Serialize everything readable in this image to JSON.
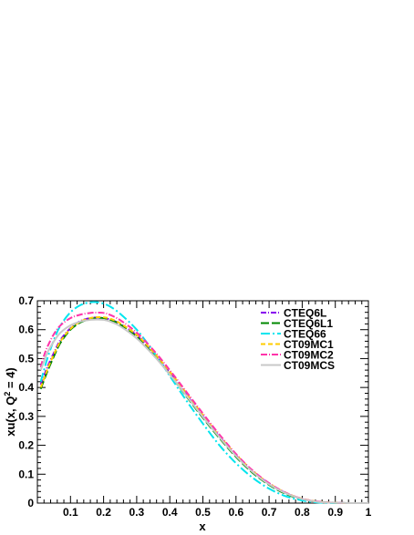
{
  "chart_data": {
    "type": "line",
    "title": "",
    "xlabel": "x",
    "ylabel": "xu(x, Q",
    "ylabel_sup": "2",
    "ylabel_tail": " = 4)",
    "xlim": [
      0,
      1
    ],
    "ylim": [
      0,
      0.7
    ],
    "x_ticks": [
      0.1,
      0.2,
      0.3,
      0.4,
      0.5,
      0.6,
      0.7,
      0.8,
      0.9,
      1
    ],
    "x_tick_labels": [
      "0.1",
      "0.2",
      "0.3",
      "0.4",
      "0.5",
      "0.6",
      "0.7",
      "0.8",
      "0.9",
      "1"
    ],
    "y_ticks": [
      0,
      0.1,
      0.2,
      0.3,
      0.4,
      0.5,
      0.6,
      0.7
    ],
    "y_tick_labels": [
      "0",
      "0.1",
      "0.2",
      "0.3",
      "0.4",
      "0.5",
      "0.6",
      "0.7"
    ],
    "grid": false,
    "legend_position": "top-right",
    "x": [
      0.01,
      0.02,
      0.03,
      0.05,
      0.07,
      0.1,
      0.13,
      0.16,
      0.18,
      0.2,
      0.22,
      0.25,
      0.3,
      0.35,
      0.4,
      0.45,
      0.5,
      0.55,
      0.6,
      0.65,
      0.7,
      0.75,
      0.8,
      0.85,
      0.9,
      0.95,
      1.0
    ],
    "series": [
      {
        "name": "CTEQ6L",
        "color": "#8800ee",
        "dash": "6,2,1,2",
        "values": [
          0.41,
          0.44,
          0.47,
          0.52,
          0.565,
          0.605,
          0.63,
          0.64,
          0.642,
          0.64,
          0.635,
          0.62,
          0.58,
          0.52,
          0.45,
          0.375,
          0.3,
          0.23,
          0.165,
          0.11,
          0.067,
          0.035,
          0.014,
          0.004,
          0.001,
          0.0,
          0.0
        ]
      },
      {
        "name": "CTEQ6L1",
        "color": "#008800",
        "dash": "9,3",
        "values": [
          0.395,
          0.425,
          0.455,
          0.508,
          0.555,
          0.6,
          0.625,
          0.637,
          0.64,
          0.64,
          0.634,
          0.618,
          0.575,
          0.515,
          0.445,
          0.37,
          0.295,
          0.225,
          0.16,
          0.105,
          0.063,
          0.032,
          0.013,
          0.004,
          0.001,
          0.0,
          0.0
        ]
      },
      {
        "name": "CTEQ66",
        "color": "#00e5ee",
        "dash": "10,3,2,3",
        "values": [
          0.42,
          0.46,
          0.5,
          0.565,
          0.615,
          0.66,
          0.685,
          0.695,
          0.695,
          0.69,
          0.68,
          0.655,
          0.6,
          0.525,
          0.44,
          0.355,
          0.275,
          0.2,
          0.138,
          0.088,
          0.05,
          0.024,
          0.009,
          0.002,
          0.0,
          0.0,
          0.0
        ]
      },
      {
        "name": "CT09MC1",
        "color": "#ffcc00",
        "dash": "5,3",
        "values": [
          0.4,
          0.43,
          0.462,
          0.515,
          0.56,
          0.603,
          0.628,
          0.64,
          0.643,
          0.643,
          0.638,
          0.622,
          0.582,
          0.523,
          0.455,
          0.38,
          0.305,
          0.232,
          0.168,
          0.112,
          0.068,
          0.036,
          0.015,
          0.005,
          0.001,
          0.0,
          0.0
        ]
      },
      {
        "name": "CT09MC2",
        "color": "#ff33aa",
        "dash": "7,2,1,2",
        "values": [
          0.47,
          0.51,
          0.54,
          0.585,
          0.615,
          0.64,
          0.652,
          0.658,
          0.659,
          0.658,
          0.651,
          0.633,
          0.59,
          0.53,
          0.46,
          0.385,
          0.31,
          0.237,
          0.17,
          0.113,
          0.069,
          0.036,
          0.015,
          0.005,
          0.001,
          0.0,
          0.0
        ]
      },
      {
        "name": "CT09MCS",
        "color": "#c8c8c8",
        "dash": "",
        "values": [
          0.46,
          0.49,
          0.52,
          0.56,
          0.59,
          0.615,
          0.628,
          0.634,
          0.635,
          0.634,
          0.628,
          0.612,
          0.57,
          0.512,
          0.445,
          0.372,
          0.298,
          0.228,
          0.163,
          0.108,
          0.065,
          0.034,
          0.014,
          0.004,
          0.001,
          0.0,
          0.0
        ]
      }
    ]
  }
}
